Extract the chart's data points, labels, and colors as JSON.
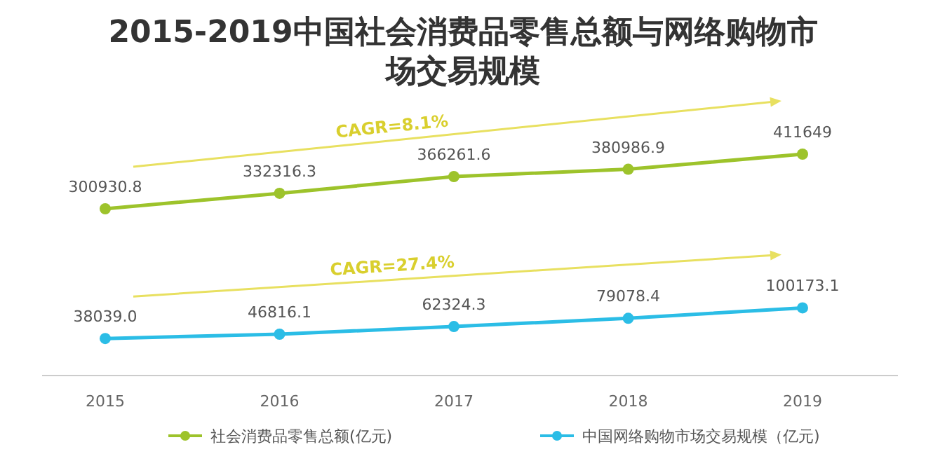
{
  "chart_data": {
    "type": "line",
    "title": "2015-2019中国社会消费品零售总额与网络购物市场交易规模",
    "categories": [
      "2015",
      "2016",
      "2017",
      "2018",
      "2019"
    ],
    "series": [
      {
        "name": "社会消费品零售总额(亿元)",
        "color": "#9dc32b",
        "values": [
          300930.8,
          332316.3,
          366261.6,
          380986.9,
          411649
        ],
        "value_labels": [
          "300930.8",
          "332316.3",
          "366261.6",
          "380986.9",
          "411649"
        ]
      },
      {
        "name": "中国网络购物市场交易规模（亿元)",
        "color": "#2bbde6",
        "values": [
          38039.0,
          46816.1,
          62324.3,
          79078.4,
          100173.1
        ],
        "value_labels": [
          "38039.0",
          "46816.1",
          "62324.3",
          "79078.4",
          "100173.1"
        ]
      }
    ],
    "tick_labels": "x",
    "marker": "circle",
    "line_style": "solid",
    "legend": "bottom",
    "annotations": [
      "CAGR=8.1%",
      "CAGR=27.4%"
    ]
  }
}
